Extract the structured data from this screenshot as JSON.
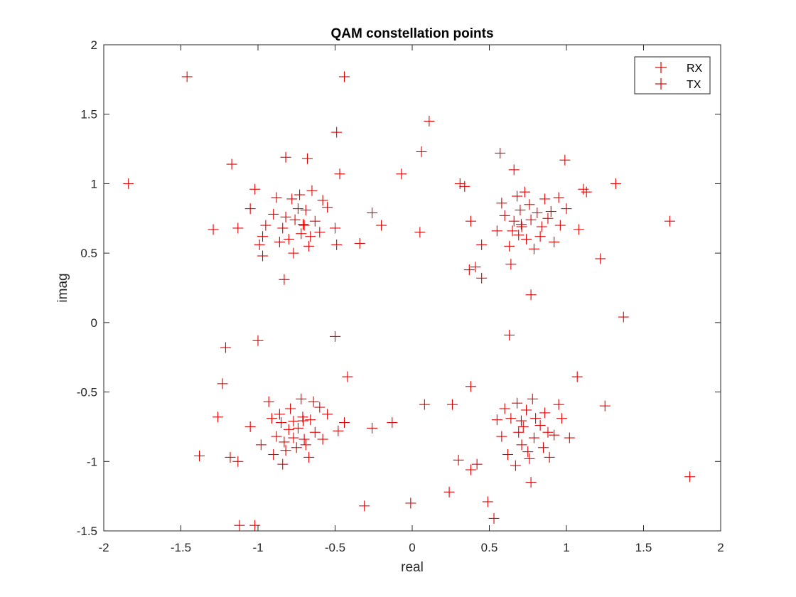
{
  "chart_data": {
    "type": "scatter",
    "title": "QAM constellation points",
    "xlabel": "real",
    "ylabel": "imag",
    "xlim": [
      -2,
      2
    ],
    "ylim": [
      -1.5,
      2
    ],
    "xticks": [
      -2,
      -1.5,
      -1,
      -0.5,
      0,
      0.5,
      1,
      1.5,
      2
    ],
    "xtick_labels": [
      "-2",
      "-1.5",
      "-1",
      "-0.5",
      "0",
      "0.5",
      "1",
      "1.5",
      "2"
    ],
    "yticks": [
      -1.5,
      -1,
      -0.5,
      0,
      0.5,
      1,
      1.5,
      2
    ],
    "ytick_labels": [
      "-1.5",
      "-1",
      "-0.5",
      "0",
      "0.5",
      "1",
      "1.5",
      "2"
    ],
    "grid": false,
    "legend_position": "top-right",
    "series": [
      {
        "name": "RX",
        "marker": "+",
        "color": "#e00000",
        "points": [
          [
            -1.46,
            1.77
          ],
          [
            -0.44,
            1.77
          ],
          [
            0.11,
            1.45
          ],
          [
            -0.49,
            1.37
          ],
          [
            0.06,
            1.23
          ],
          [
            0.57,
            1.22
          ],
          [
            -0.82,
            1.19
          ],
          [
            -0.68,
            1.18
          ],
          [
            -1.17,
            1.14
          ],
          [
            0.99,
            1.17
          ],
          [
            0.66,
            1.1
          ],
          [
            -0.47,
            1.07
          ],
          [
            -0.07,
            1.07
          ],
          [
            -1.84,
            1.0
          ],
          [
            0.31,
            1.0
          ],
          [
            0.34,
            0.98
          ],
          [
            1.32,
            1.0
          ],
          [
            -1.02,
            0.96
          ],
          [
            1.11,
            0.96
          ],
          [
            1.13,
            0.94
          ],
          [
            -0.26,
            0.79
          ],
          [
            -0.2,
            0.7
          ],
          [
            -1.29,
            0.67
          ],
          [
            -1.13,
            0.68
          ],
          [
            0.38,
            0.73
          ],
          [
            1.67,
            0.73
          ],
          [
            1.08,
            0.67
          ],
          [
            -0.99,
            0.56
          ],
          [
            -0.97,
            0.48
          ],
          [
            -0.49,
            0.56
          ],
          [
            -0.34,
            0.57
          ],
          [
            0.05,
            0.65
          ],
          [
            0.45,
            0.56
          ],
          [
            1.22,
            0.46
          ],
          [
            0.41,
            0.4
          ],
          [
            0.64,
            0.42
          ],
          [
            0.37,
            0.38
          ],
          [
            0.45,
            0.32
          ],
          [
            -0.83,
            0.31
          ],
          [
            0.77,
            0.2
          ],
          [
            1.37,
            0.04
          ],
          [
            -0.5,
            -0.1
          ],
          [
            0.63,
            -0.09
          ],
          [
            -1.0,
            -0.13
          ],
          [
            -1.21,
            -0.18
          ],
          [
            -1.23,
            -0.44
          ],
          [
            -1.26,
            -0.68
          ],
          [
            -1.38,
            -0.96
          ],
          [
            -1.18,
            -0.97
          ],
          [
            -1.13,
            -1.0
          ],
          [
            -1.12,
            -1.46
          ],
          [
            -1.02,
            -1.46
          ],
          [
            -0.31,
            -1.32
          ],
          [
            -0.13,
            -0.72
          ],
          [
            0.08,
            -0.59
          ],
          [
            -0.01,
            -1.3
          ],
          [
            0.24,
            -1.22
          ],
          [
            0.49,
            -1.29
          ],
          [
            0.53,
            -1.41
          ],
          [
            0.26,
            -0.59
          ],
          [
            0.38,
            -0.46
          ],
          [
            0.3,
            -0.99
          ],
          [
            0.38,
            -1.06
          ],
          [
            0.42,
            -1.02
          ],
          [
            -0.26,
            -0.76
          ],
          [
            1.07,
            -0.39
          ],
          [
            1.25,
            -0.6
          ],
          [
            1.8,
            -1.11
          ],
          [
            0.77,
            -1.15
          ],
          [
            -0.44,
            -0.72
          ],
          [
            -0.42,
            -0.39
          ],
          [
            -0.74,
            -0.76
          ],
          [
            -0.88,
            -0.82
          ],
          [
            -0.66,
            -0.7
          ],
          [
            -0.79,
            -0.62
          ],
          [
            -0.69,
            -0.88
          ],
          [
            -0.91,
            -0.69
          ],
          [
            -0.82,
            -0.92
          ],
          [
            -0.6,
            -0.61
          ],
          [
            -0.72,
            -0.55
          ],
          [
            -0.85,
            -0.72
          ],
          [
            -0.77,
            -0.83
          ],
          [
            -0.63,
            -0.79
          ],
          [
            -0.98,
            -0.88
          ],
          [
            -0.55,
            -0.66
          ],
          [
            -0.67,
            -0.97
          ],
          [
            -0.84,
            -1.02
          ],
          [
            -0.93,
            -0.57
          ],
          [
            -0.71,
            -0.68
          ],
          [
            -0.8,
            -0.77
          ],
          [
            -0.75,
            -0.9
          ],
          [
            -0.58,
            -0.84
          ],
          [
            -0.9,
            -0.95
          ],
          [
            -1.05,
            -0.75
          ],
          [
            -0.48,
            -0.78
          ],
          [
            -0.64,
            -0.57
          ],
          [
            -0.86,
            -0.66
          ],
          [
            -0.77,
            -0.71
          ],
          [
            -0.7,
            -0.84
          ],
          [
            -0.83,
            -0.86
          ],
          [
            0.72,
            -0.75
          ],
          [
            0.79,
            -0.83
          ],
          [
            0.64,
            -0.69
          ],
          [
            0.86,
            -0.65
          ],
          [
            0.75,
            -0.93
          ],
          [
            0.68,
            -0.58
          ],
          [
            0.92,
            -0.81
          ],
          [
            0.58,
            -0.82
          ],
          [
            0.83,
            -0.74
          ],
          [
            0.71,
            -0.88
          ],
          [
            0.97,
            -0.69
          ],
          [
            0.62,
            -0.95
          ],
          [
            0.78,
            -0.55
          ],
          [
            0.89,
            -0.97
          ],
          [
            0.55,
            -0.7
          ],
          [
            1.02,
            -0.83
          ],
          [
            0.67,
            -1.03
          ],
          [
            0.85,
            -0.9
          ],
          [
            0.74,
            -0.63
          ],
          [
            0.6,
            -0.62
          ],
          [
            0.95,
            -0.59
          ],
          [
            0.8,
            -0.69
          ],
          [
            0.69,
            -0.79
          ],
          [
            0.88,
            -0.79
          ],
          [
            0.76,
            -0.98
          ],
          [
            -0.76,
            0.74
          ],
          [
            -0.69,
            0.81
          ],
          [
            -0.84,
            0.68
          ],
          [
            -0.72,
            0.64
          ],
          [
            -0.9,
            0.78
          ],
          [
            -0.63,
            0.73
          ],
          [
            -0.78,
            0.89
          ],
          [
            -0.55,
            0.83
          ],
          [
            -0.95,
            0.7
          ],
          [
            -0.67,
            0.55
          ],
          [
            -0.86,
            0.58
          ],
          [
            -0.6,
            0.65
          ],
          [
            -0.8,
            0.6
          ],
          [
            -0.73,
            0.92
          ],
          [
            -1.05,
            0.82
          ],
          [
            -0.5,
            0.68
          ],
          [
            -0.88,
            0.9
          ],
          [
            -0.65,
            0.95
          ],
          [
            -0.77,
            0.5
          ],
          [
            -0.97,
            0.62
          ],
          [
            -0.58,
            0.88
          ],
          [
            -0.7,
            0.7
          ],
          [
            -0.82,
            0.76
          ],
          [
            -0.74,
            0.82
          ],
          [
            -0.66,
            0.62
          ],
          [
            0.77,
            0.74
          ],
          [
            0.7,
            0.81
          ],
          [
            0.84,
            0.69
          ],
          [
            0.65,
            0.66
          ],
          [
            0.9,
            0.8
          ],
          [
            0.74,
            0.6
          ],
          [
            0.6,
            0.77
          ],
          [
            0.86,
            0.89
          ],
          [
            0.79,
            0.53
          ],
          [
            0.96,
            0.7
          ],
          [
            0.68,
            0.91
          ],
          [
            0.55,
            0.66
          ],
          [
            0.92,
            0.58
          ],
          [
            0.73,
            0.94
          ],
          [
            1.0,
            0.82
          ],
          [
            0.63,
            0.55
          ],
          [
            0.83,
            0.62
          ],
          [
            0.71,
            0.69
          ],
          [
            0.88,
            0.75
          ],
          [
            0.76,
            0.85
          ],
          [
            0.58,
            0.86
          ],
          [
            0.95,
            0.9
          ],
          [
            0.66,
            0.73
          ],
          [
            0.81,
            0.79
          ],
          [
            0.69,
            0.63
          ]
        ]
      },
      {
        "name": "TX",
        "marker": "+",
        "color": "#e00000",
        "points": [
          [
            -0.7071,
            0.7071
          ],
          [
            0.7071,
            0.7071
          ],
          [
            -0.7071,
            -0.7071
          ],
          [
            0.7071,
            -0.7071
          ]
        ]
      }
    ]
  }
}
